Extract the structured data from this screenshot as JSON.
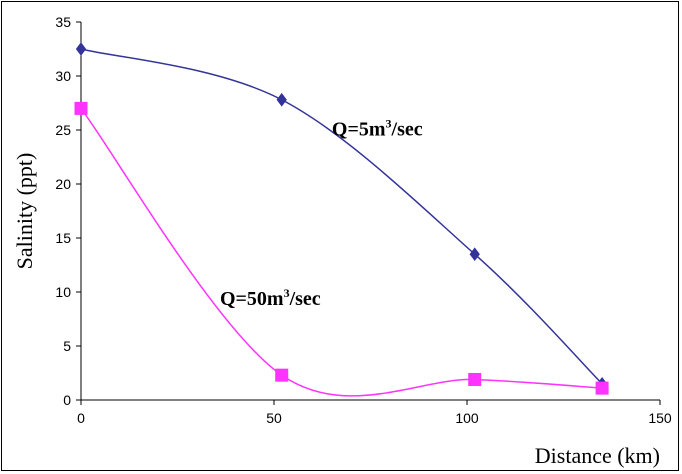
{
  "chart_data": {
    "type": "line",
    "title": "",
    "xlabel": "Distance (km)",
    "ylabel": "Salinity  (ppt)",
    "xlim": [
      0,
      150
    ],
    "ylim": [
      0,
      35
    ],
    "xticks": [
      0,
      50,
      100,
      150
    ],
    "yticks": [
      0,
      5,
      10,
      15,
      20,
      25,
      30,
      35
    ],
    "grid": false,
    "legend": "none",
    "series": [
      {
        "color": "#33339a",
        "marker": "diamond",
        "x": [
          0,
          52,
          102,
          135
        ],
        "y": [
          32.5,
          27.8,
          13.5,
          1.5
        ]
      },
      {
        "color": "#ff33ff",
        "marker": "square",
        "x": [
          0,
          52,
          102,
          135
        ],
        "y": [
          27,
          2.3,
          1.9,
          1.1
        ]
      }
    ],
    "annotations": [
      {
        "base": "Q=5m",
        "sup": "3",
        "tail": "/sec",
        "x": 65,
        "y": 24.5
      },
      {
        "base": "Q=50m",
        "sup": "3",
        "tail": "/sec",
        "x": 36,
        "y": 8.8
      }
    ]
  }
}
